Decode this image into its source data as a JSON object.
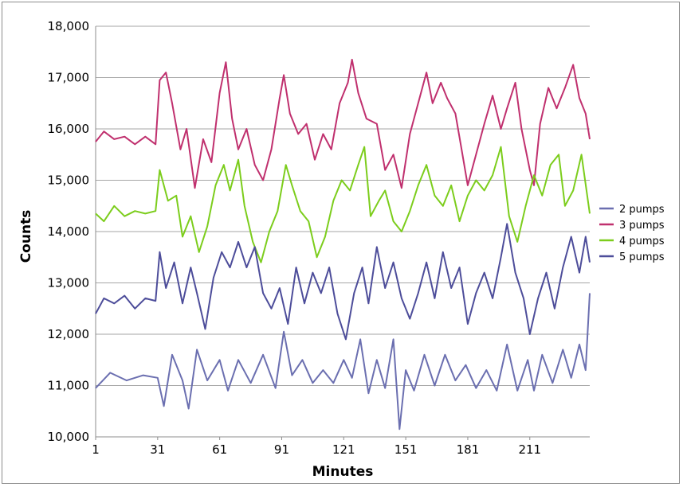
{
  "chart_data": {
    "type": "line",
    "title": "",
    "xlabel": "Minutes",
    "ylabel": "Counts",
    "ylim": [
      10000,
      18000
    ],
    "xlim": [
      1,
      240
    ],
    "x_tick_labels": [
      "1",
      "31",
      "61",
      "91",
      "121",
      "151",
      "181",
      "211"
    ],
    "x_tick_values": [
      1,
      31,
      61,
      91,
      121,
      151,
      181,
      211
    ],
    "y_tick_labels": [
      "10,000",
      "11,000",
      "12,000",
      "13,000",
      "14,000",
      "15,000",
      "16,000",
      "17,000",
      "18,000"
    ],
    "y_tick_values": [
      10000,
      11000,
      12000,
      13000,
      14000,
      15000,
      16000,
      17000,
      18000
    ],
    "grid": "horizontal",
    "legend_position": "right",
    "series": [
      {
        "name": "2 pumps",
        "color": "#6b6fb0",
        "points": [
          [
            1,
            10950
          ],
          [
            8,
            11250
          ],
          [
            16,
            11100
          ],
          [
            24,
            11200
          ],
          [
            31,
            11150
          ],
          [
            34,
            10600
          ],
          [
            38,
            11600
          ],
          [
            43,
            11100
          ],
          [
            46,
            10550
          ],
          [
            50,
            11700
          ],
          [
            55,
            11100
          ],
          [
            61,
            11500
          ],
          [
            65,
            10900
          ],
          [
            70,
            11500
          ],
          [
            76,
            11050
          ],
          [
            82,
            11600
          ],
          [
            88,
            10950
          ],
          [
            92,
            12050
          ],
          [
            96,
            11200
          ],
          [
            101,
            11500
          ],
          [
            106,
            11050
          ],
          [
            111,
            11300
          ],
          [
            116,
            11050
          ],
          [
            121,
            11500
          ],
          [
            125,
            11150
          ],
          [
            129,
            11900
          ],
          [
            133,
            10850
          ],
          [
            137,
            11500
          ],
          [
            141,
            10950
          ],
          [
            145,
            11900
          ],
          [
            148,
            10150
          ],
          [
            151,
            11300
          ],
          [
            155,
            10900
          ],
          [
            160,
            11600
          ],
          [
            165,
            11000
          ],
          [
            170,
            11600
          ],
          [
            175,
            11100
          ],
          [
            180,
            11400
          ],
          [
            185,
            10950
          ],
          [
            190,
            11300
          ],
          [
            195,
            10900
          ],
          [
            200,
            11800
          ],
          [
            205,
            10900
          ],
          [
            210,
            11500
          ],
          [
            213,
            10900
          ],
          [
            217,
            11600
          ],
          [
            222,
            11050
          ],
          [
            227,
            11700
          ],
          [
            231,
            11150
          ],
          [
            235,
            11800
          ],
          [
            238,
            11300
          ],
          [
            240,
            12800
          ]
        ]
      },
      {
        "name": "3 pumps",
        "color": "#c0306e",
        "points": [
          [
            1,
            15750
          ],
          [
            5,
            15950
          ],
          [
            10,
            15800
          ],
          [
            15,
            15850
          ],
          [
            20,
            15700
          ],
          [
            25,
            15850
          ],
          [
            30,
            15700
          ],
          [
            32,
            16950
          ],
          [
            35,
            17100
          ],
          [
            38,
            16500
          ],
          [
            42,
            15600
          ],
          [
            45,
            16000
          ],
          [
            49,
            14850
          ],
          [
            53,
            15800
          ],
          [
            57,
            15350
          ],
          [
            61,
            16700
          ],
          [
            64,
            17300
          ],
          [
            67,
            16200
          ],
          [
            70,
            15600
          ],
          [
            74,
            16000
          ],
          [
            78,
            15300
          ],
          [
            82,
            15000
          ],
          [
            86,
            15600
          ],
          [
            90,
            16600
          ],
          [
            92,
            17050
          ],
          [
            95,
            16300
          ],
          [
            99,
            15900
          ],
          [
            103,
            16100
          ],
          [
            107,
            15400
          ],
          [
            111,
            15900
          ],
          [
            115,
            15600
          ],
          [
            119,
            16500
          ],
          [
            123,
            16900
          ],
          [
            125,
            17350
          ],
          [
            128,
            16700
          ],
          [
            132,
            16200
          ],
          [
            137,
            16100
          ],
          [
            141,
            15200
          ],
          [
            145,
            15500
          ],
          [
            149,
            14850
          ],
          [
            153,
            15900
          ],
          [
            157,
            16500
          ],
          [
            161,
            17100
          ],
          [
            164,
            16500
          ],
          [
            168,
            16900
          ],
          [
            171,
            16600
          ],
          [
            175,
            16300
          ],
          [
            178,
            15600
          ],
          [
            181,
            14900
          ],
          [
            185,
            15500
          ],
          [
            189,
            16100
          ],
          [
            193,
            16650
          ],
          [
            197,
            16000
          ],
          [
            200,
            16400
          ],
          [
            204,
            16900
          ],
          [
            207,
            16000
          ],
          [
            211,
            15200
          ],
          [
            213,
            14900
          ],
          [
            216,
            16100
          ],
          [
            220,
            16800
          ],
          [
            224,
            16400
          ],
          [
            228,
            16800
          ],
          [
            232,
            17250
          ],
          [
            235,
            16600
          ],
          [
            238,
            16300
          ],
          [
            240,
            15800
          ]
        ]
      },
      {
        "name": "4 pumps",
        "color": "#7ccd1c",
        "points": [
          [
            1,
            14350
          ],
          [
            5,
            14200
          ],
          [
            10,
            14500
          ],
          [
            15,
            14300
          ],
          [
            20,
            14400
          ],
          [
            25,
            14350
          ],
          [
            30,
            14400
          ],
          [
            32,
            15200
          ],
          [
            36,
            14600
          ],
          [
            40,
            14700
          ],
          [
            43,
            13900
          ],
          [
            47,
            14300
          ],
          [
            51,
            13600
          ],
          [
            55,
            14100
          ],
          [
            59,
            14900
          ],
          [
            63,
            15300
          ],
          [
            66,
            14800
          ],
          [
            70,
            15400
          ],
          [
            73,
            14500
          ],
          [
            77,
            13800
          ],
          [
            81,
            13400
          ],
          [
            85,
            14000
          ],
          [
            89,
            14400
          ],
          [
            93,
            15300
          ],
          [
            96,
            14900
          ],
          [
            100,
            14400
          ],
          [
            104,
            14200
          ],
          [
            108,
            13500
          ],
          [
            112,
            13900
          ],
          [
            116,
            14600
          ],
          [
            120,
            15000
          ],
          [
            124,
            14800
          ],
          [
            128,
            15300
          ],
          [
            131,
            15650
          ],
          [
            134,
            14300
          ],
          [
            138,
            14600
          ],
          [
            141,
            14800
          ],
          [
            145,
            14200
          ],
          [
            149,
            14000
          ],
          [
            153,
            14400
          ],
          [
            157,
            14900
          ],
          [
            161,
            15300
          ],
          [
            165,
            14700
          ],
          [
            169,
            14500
          ],
          [
            173,
            14900
          ],
          [
            177,
            14200
          ],
          [
            181,
            14700
          ],
          [
            185,
            15000
          ],
          [
            189,
            14800
          ],
          [
            193,
            15100
          ],
          [
            197,
            15650
          ],
          [
            201,
            14300
          ],
          [
            205,
            13800
          ],
          [
            209,
            14500
          ],
          [
            213,
            15100
          ],
          [
            217,
            14700
          ],
          [
            221,
            15300
          ],
          [
            225,
            15500
          ],
          [
            228,
            14500
          ],
          [
            232,
            14800
          ],
          [
            236,
            15500
          ],
          [
            240,
            14350
          ]
        ]
      },
      {
        "name": "5 pumps",
        "color": "#4d4d9a",
        "points": [
          [
            1,
            12400
          ],
          [
            5,
            12700
          ],
          [
            10,
            12600
          ],
          [
            15,
            12750
          ],
          [
            20,
            12500
          ],
          [
            25,
            12700
          ],
          [
            30,
            12650
          ],
          [
            32,
            13600
          ],
          [
            35,
            12900
          ],
          [
            39,
            13400
          ],
          [
            43,
            12600
          ],
          [
            47,
            13300
          ],
          [
            50,
            12800
          ],
          [
            54,
            12100
          ],
          [
            58,
            13100
          ],
          [
            62,
            13600
          ],
          [
            66,
            13300
          ],
          [
            70,
            13800
          ],
          [
            74,
            13300
          ],
          [
            78,
            13700
          ],
          [
            82,
            12800
          ],
          [
            86,
            12500
          ],
          [
            90,
            12900
          ],
          [
            94,
            12200
          ],
          [
            98,
            13300
          ],
          [
            102,
            12600
          ],
          [
            106,
            13200
          ],
          [
            110,
            12800
          ],
          [
            114,
            13300
          ],
          [
            118,
            12400
          ],
          [
            122,
            11900
          ],
          [
            126,
            12800
          ],
          [
            130,
            13300
          ],
          [
            133,
            12600
          ],
          [
            137,
            13700
          ],
          [
            141,
            12900
          ],
          [
            145,
            13400
          ],
          [
            149,
            12700
          ],
          [
            153,
            12300
          ],
          [
            157,
            12800
          ],
          [
            161,
            13400
          ],
          [
            165,
            12700
          ],
          [
            169,
            13600
          ],
          [
            173,
            12900
          ],
          [
            177,
            13300
          ],
          [
            181,
            12200
          ],
          [
            185,
            12800
          ],
          [
            189,
            13200
          ],
          [
            193,
            12700
          ],
          [
            197,
            13500
          ],
          [
            200,
            14150
          ],
          [
            204,
            13200
          ],
          [
            208,
            12700
          ],
          [
            211,
            12000
          ],
          [
            215,
            12700
          ],
          [
            219,
            13200
          ],
          [
            223,
            12500
          ],
          [
            227,
            13300
          ],
          [
            231,
            13900
          ],
          [
            235,
            13200
          ],
          [
            238,
            13900
          ],
          [
            240,
            13400
          ]
        ]
      }
    ]
  }
}
